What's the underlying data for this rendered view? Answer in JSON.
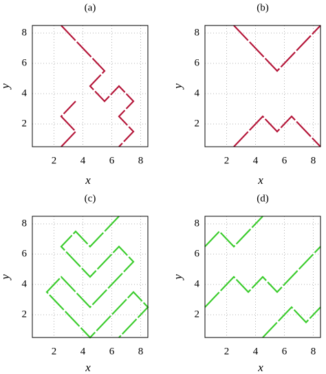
{
  "chart_data": [
    {
      "type": "line",
      "title": "(a)",
      "xlabel": "x",
      "ylabel": "y",
      "xlim": [
        0.5,
        8.5
      ],
      "ylim": [
        0.5,
        8.5
      ],
      "xticks": [
        2,
        4,
        6,
        8
      ],
      "yticks": [
        2,
        4,
        6,
        8
      ],
      "grid": true,
      "series": [
        {
          "color": "#b5173a",
          "x": [
            2.5,
            5.5,
            4.5,
            5.5,
            6.5,
            7.5,
            6.5,
            7.5,
            6.5,
            null,
            2.5,
            3.5,
            2.5,
            3.5
          ],
          "y": [
            8.5,
            5.5,
            4.5,
            3.5,
            4.5,
            3.5,
            2.5,
            1.5,
            0.5,
            null,
            0.5,
            1.5,
            2.5,
            3.5
          ]
        }
      ]
    },
    {
      "type": "line",
      "title": "(b)",
      "xlabel": "x",
      "ylabel": "y",
      "xlim": [
        0.5,
        8.5
      ],
      "ylim": [
        0.5,
        8.5
      ],
      "xticks": [
        2,
        4,
        6,
        8
      ],
      "yticks": [
        2,
        4,
        6,
        8
      ],
      "grid": true,
      "series": [
        {
          "color": "#b5173a",
          "x": [
            2.5,
            5.5,
            8.5,
            null,
            2.5,
            4.5,
            5.5,
            6.5,
            8.5
          ],
          "y": [
            8.5,
            5.5,
            8.5,
            null,
            0.5,
            2.5,
            1.5,
            2.5,
            0.5
          ]
        }
      ]
    },
    {
      "type": "line",
      "title": "(c)",
      "xlabel": "x",
      "ylabel": "y",
      "xlim": [
        0.5,
        8.5
      ],
      "ylim": [
        0.5,
        8.5
      ],
      "xticks": [
        2,
        4,
        6,
        8
      ],
      "yticks": [
        2,
        4,
        6,
        8
      ],
      "grid": true,
      "series": [
        {
          "color": "#3ccc2e",
          "x": [
            6.5,
            4.5,
            3.5,
            2.5,
            4.5,
            6.5,
            7.5,
            4.5,
            2.5,
            1.5,
            4.5,
            7.5,
            8.5,
            6.5
          ],
          "y": [
            8.5,
            6.5,
            7.5,
            6.5,
            4.5,
            6.5,
            5.5,
            2.5,
            4.5,
            3.5,
            0.5,
            3.5,
            2.5,
            0.5
          ]
        }
      ]
    },
    {
      "type": "line",
      "title": "(d)",
      "xlabel": "x",
      "ylabel": "y",
      "xlim": [
        0.5,
        8.5
      ],
      "ylim": [
        0.5,
        8.5
      ],
      "xticks": [
        2,
        4,
        6,
        8
      ],
      "yticks": [
        2,
        4,
        6,
        8
      ],
      "grid": true,
      "series": [
        {
          "color": "#3ccc2e",
          "x": [
            0.5,
            1.5,
            2.5,
            4.5,
            null,
            0.5,
            2.5,
            3.5,
            4.5,
            5.5,
            8.5,
            null,
            4.5,
            6.5,
            7.5,
            8.5
          ],
          "y": [
            6.5,
            7.5,
            6.5,
            8.5,
            null,
            2.5,
            4.5,
            3.5,
            4.5,
            3.5,
            6.5,
            null,
            0.5,
            2.5,
            1.5,
            2.5
          ]
        }
      ]
    }
  ]
}
